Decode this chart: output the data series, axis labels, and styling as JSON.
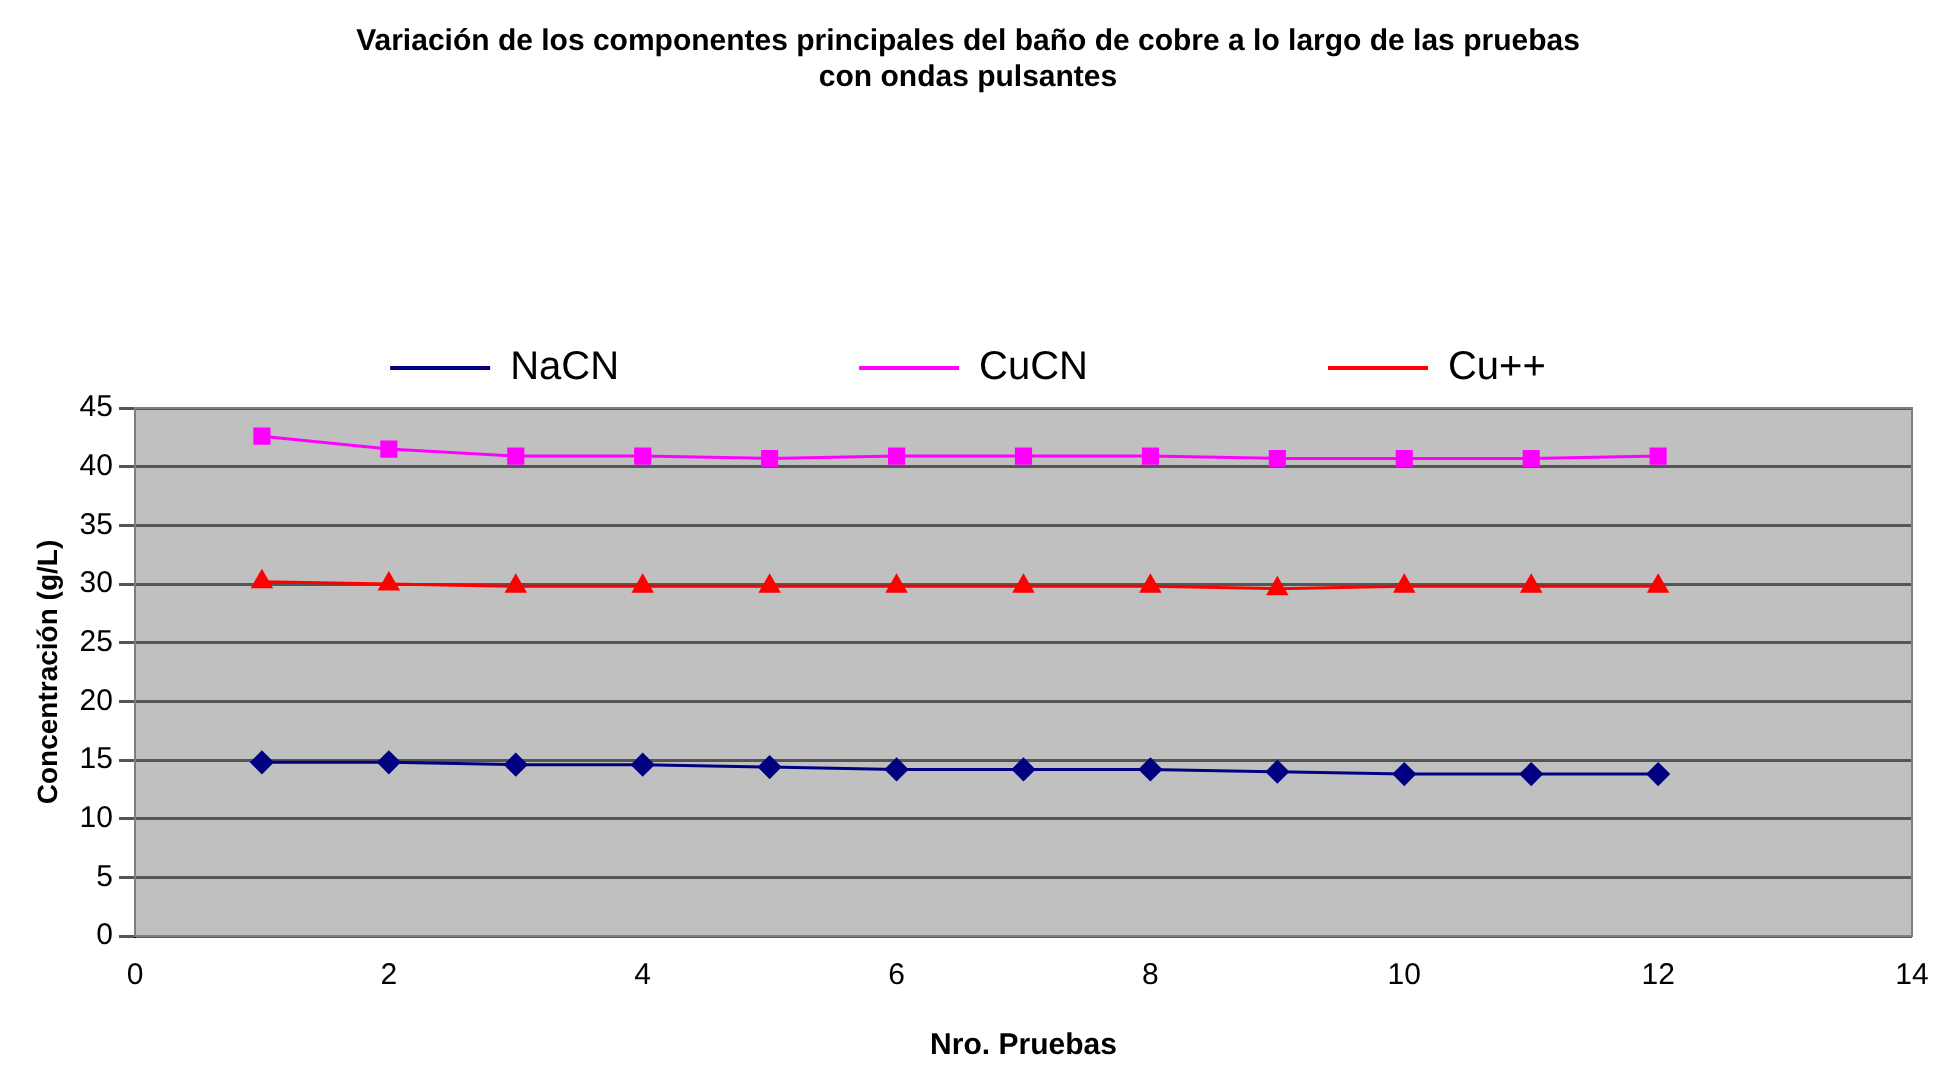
{
  "chart_data": {
    "type": "line",
    "title": [
      "Variación de los componentes principales del baño de cobre a lo largo de las pruebas",
      "con ondas pulsantes"
    ],
    "xlabel": "Nro. Pruebas",
    "ylabel": "Concentración (g/L)",
    "x": [
      1,
      2,
      3,
      4,
      5,
      6,
      7,
      8,
      9,
      10,
      11,
      12
    ],
    "xlim": [
      0,
      14
    ],
    "xticks": [
      0,
      2,
      4,
      6,
      8,
      10,
      12,
      14
    ],
    "ylim": [
      0,
      45
    ],
    "yticks": [
      0,
      5,
      10,
      15,
      20,
      25,
      30,
      35,
      40,
      45
    ],
    "grid": "y",
    "legend": "top",
    "line_style": "solid",
    "series": [
      {
        "name": "NaCN",
        "color": "#000080",
        "marker": "diamond",
        "values": [
          14.8,
          14.8,
          14.6,
          14.6,
          14.4,
          14.2,
          14.2,
          14.2,
          14.0,
          13.8,
          13.8,
          13.8
        ]
      },
      {
        "name": "CuCN",
        "color": "#ff00ff",
        "marker": "square",
        "values": [
          42.6,
          41.5,
          40.9,
          40.9,
          40.7,
          40.9,
          40.9,
          40.9,
          40.7,
          40.7,
          40.7,
          40.9
        ]
      },
      {
        "name": "Cu++",
        "color": "#ff0000",
        "marker": "triangle",
        "values": [
          30.2,
          30.0,
          29.8,
          29.8,
          29.8,
          29.8,
          29.8,
          29.8,
          29.6,
          29.8,
          29.8,
          29.8
        ]
      }
    ]
  }
}
